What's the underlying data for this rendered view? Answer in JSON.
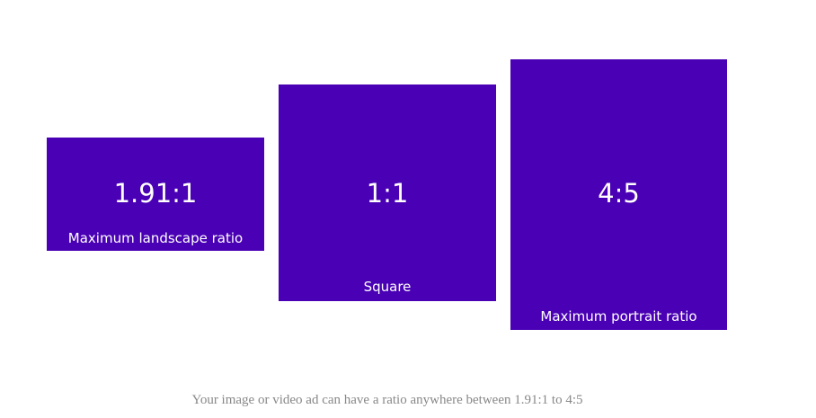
{
  "boxes": [
    {
      "ratio": "1.91:1",
      "label": "Maximum landscape ratio"
    },
    {
      "ratio": "1:1",
      "label": "Square"
    },
    {
      "ratio": "4:5",
      "label": "Maximum portrait ratio"
    }
  ],
  "caption": "Your image or video ad can have a ratio anywhere between 1.91:1 to 4:5"
}
